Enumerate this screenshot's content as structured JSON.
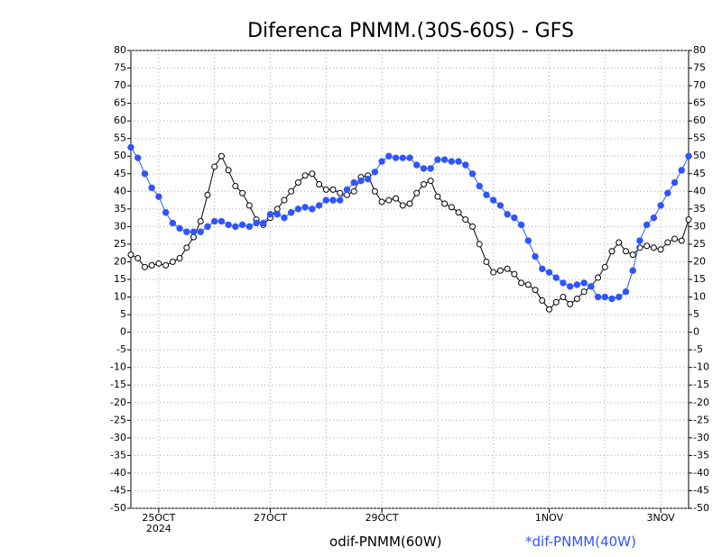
{
  "chart_data": {
    "type": "line",
    "title": "Diferenca PNMM.(30S-60S) - GFS",
    "categories": [
      null,
      null,
      null,
      null,
      "25OCT",
      null,
      null,
      null,
      null,
      null,
      null,
      null,
      null,
      null,
      null,
      null,
      null,
      null,
      null,
      null,
      "27OCT",
      null,
      null,
      null,
      null,
      null,
      null,
      null,
      null,
      null,
      null,
      null,
      null,
      null,
      null,
      null,
      "29OCT",
      null,
      null,
      null,
      null,
      null,
      null,
      null,
      null,
      null,
      null,
      null,
      null,
      null,
      null,
      null,
      null,
      null,
      null,
      null,
      null,
      null,
      null,
      null,
      "1NOV",
      null,
      null,
      null,
      null,
      null,
      null,
      null,
      null,
      null,
      null,
      null,
      null,
      null,
      null,
      null,
      "3NOV",
      null,
      null,
      null,
      null
    ],
    "year_label": "2024",
    "series": [
      {
        "name": "dif-PNMM(60W)",
        "marker_symbol": "o",
        "color": "#000000",
        "marker": "open-circle",
        "values": [
          22,
          21,
          18.5,
          19,
          19.5,
          19,
          20,
          21,
          24,
          27,
          31.5,
          39,
          47,
          50,
          46,
          41.5,
          39.5,
          36,
          32,
          30.5,
          32.5,
          35,
          37.5,
          40,
          42.5,
          44.5,
          45,
          42,
          40.5,
          40.5,
          39.5,
          39,
          40,
          44,
          44.5,
          40,
          37,
          37.5,
          38,
          36,
          36.5,
          39.5,
          42,
          43,
          38.5,
          36.5,
          35.5,
          34,
          32,
          30,
          25,
          20,
          17,
          17.5,
          18,
          16.5,
          14,
          13.5,
          12,
          9,
          6.5,
          8.5,
          10,
          8,
          9.5,
          11.5,
          13,
          15.5,
          18.5,
          23,
          25.5,
          23,
          22,
          24,
          24.5,
          24,
          23.5,
          25.5,
          26.5,
          26,
          32
        ]
      },
      {
        "name": "dif-PNMM(40W)",
        "marker_symbol": "*",
        "color": "#2f55ff",
        "marker": "filled-circle",
        "values": [
          52.5,
          49.5,
          45,
          41,
          38.5,
          34,
          31,
          29.5,
          28.5,
          28.5,
          28.5,
          30,
          31.5,
          31.5,
          30.5,
          30,
          30.5,
          30,
          31,
          31,
          33.5,
          33.5,
          32.5,
          34,
          35,
          35.5,
          35,
          36,
          37.5,
          37.5,
          37.5,
          40.5,
          42.5,
          43,
          43.5,
          45.5,
          48.5,
          50,
          49.5,
          49.5,
          49.5,
          47.5,
          46.5,
          46.5,
          49,
          49,
          48.5,
          48.5,
          47.5,
          45,
          41.5,
          39,
          37.5,
          36,
          33.5,
          32.5,
          30.5,
          26,
          21.5,
          18,
          17,
          15.5,
          14,
          13,
          13.5,
          14,
          13,
          10,
          10,
          9.5,
          10,
          11.5,
          17.5,
          26,
          30.5,
          32.5,
          36,
          39.5,
          42.5,
          46,
          50
        ]
      }
    ],
    "ylim": [
      -50,
      80
    ],
    "yticks": [
      -50,
      -45,
      -40,
      -35,
      -30,
      -25,
      -20,
      -15,
      -10,
      -5,
      0,
      5,
      10,
      15,
      20,
      25,
      30,
      35,
      40,
      45,
      50,
      55,
      60,
      65,
      70,
      75,
      80
    ],
    "y2lim": [
      -50,
      80
    ],
    "y2ticks": [
      -50,
      -45,
      -40,
      -35,
      -30,
      -25,
      -20,
      -15,
      -10,
      -5,
      0,
      5,
      10,
      15,
      20,
      25,
      30,
      35,
      40,
      45,
      50,
      55,
      60,
      65,
      70,
      75,
      80
    ],
    "grid": true
  }
}
